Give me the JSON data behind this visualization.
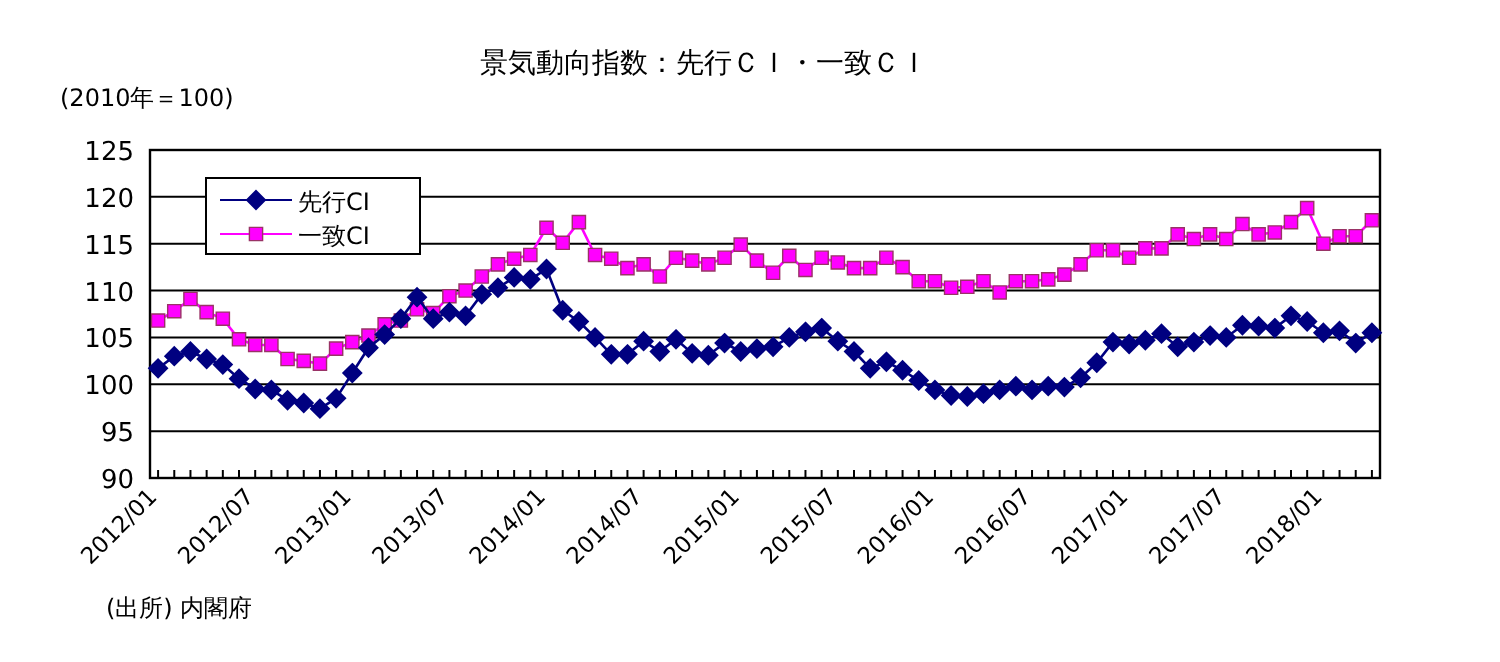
{
  "chart_data": {
    "type": "line",
    "title": "景気動向指数：先行ＣＩ・一致ＣＩ",
    "subtitle": "(2010年＝100)",
    "annotations": [
      "(出所) 内閣府"
    ],
    "categories": [
      "2012/01",
      null,
      null,
      null,
      null,
      null,
      "2012/07",
      null,
      null,
      null,
      null,
      null,
      "2013/01",
      null,
      null,
      null,
      null,
      null,
      "2013/07",
      null,
      null,
      null,
      null,
      null,
      "2014/01",
      null,
      null,
      null,
      null,
      null,
      "2014/07",
      null,
      null,
      null,
      null,
      null,
      "2015/01",
      null,
      null,
      null,
      null,
      null,
      "2015/07",
      null,
      null,
      null,
      null,
      null,
      "2016/01",
      null,
      null,
      null,
      null,
      null,
      "2016/07",
      null,
      null,
      null,
      null,
      null,
      "2017/01",
      null,
      null,
      null,
      null,
      null,
      "2017/07",
      null,
      null,
      null,
      null,
      null,
      "2018/01",
      null,
      null,
      null
    ],
    "series": [
      {
        "name": "先行CI",
        "color": "#000080",
        "marker": "diamond",
        "values": [
          101.7,
          103.0,
          103.5,
          102.7,
          102.1,
          100.6,
          99.5,
          99.4,
          98.3,
          98.0,
          97.4,
          98.5,
          101.2,
          103.9,
          105.3,
          107.0,
          109.3,
          107.0,
          107.7,
          107.3,
          109.6,
          110.3,
          111.4,
          111.2,
          112.3,
          107.9,
          106.7,
          105.0,
          103.2,
          103.2,
          104.6,
          103.5,
          104.8,
          103.3,
          103.1,
          104.4,
          103.5,
          103.8,
          104.0,
          105.0,
          105.6,
          106.0,
          104.6,
          103.5,
          101.7,
          102.4,
          101.5,
          100.4,
          99.4,
          98.8,
          98.7,
          99.0,
          99.4,
          99.8,
          99.4,
          99.8,
          99.7,
          100.7,
          102.3,
          104.5,
          104.3,
          104.7,
          105.4,
          104.0,
          104.5,
          105.2,
          105.0,
          106.3,
          106.2,
          106.0,
          107.3,
          106.7,
          105.5,
          105.7,
          104.4,
          105.5
        ]
      },
      {
        "name": "一致CI",
        "color": "#ff00ff",
        "marker": "square",
        "values": [
          106.8,
          107.8,
          109.1,
          107.7,
          107.0,
          104.8,
          104.2,
          104.2,
          102.7,
          102.5,
          102.2,
          103.8,
          104.5,
          105.2,
          106.4,
          106.8,
          108.0,
          107.6,
          109.4,
          110.0,
          111.5,
          112.8,
          113.4,
          113.8,
          116.7,
          115.1,
          117.3,
          113.8,
          113.4,
          112.4,
          112.8,
          111.5,
          113.5,
          113.2,
          112.8,
          113.5,
          114.9,
          113.2,
          111.9,
          113.7,
          112.2,
          113.5,
          113.0,
          112.4,
          112.4,
          113.5,
          112.5,
          111.0,
          111.0,
          110.3,
          110.4,
          111.0,
          109.8,
          111.0,
          111.0,
          111.2,
          111.7,
          112.8,
          114.3,
          114.3,
          113.5,
          114.5,
          114.5,
          116.0,
          115.5,
          116.0,
          115.5,
          117.1,
          116.0,
          116.2,
          117.3,
          118.8,
          115.0,
          115.8,
          115.8,
          117.5
        ]
      }
    ],
    "ylim": [
      90,
      125
    ],
    "yticks": [
      90,
      95,
      100,
      105,
      110,
      115,
      120,
      125
    ],
    "grid": "y",
    "legend": "top left"
  }
}
